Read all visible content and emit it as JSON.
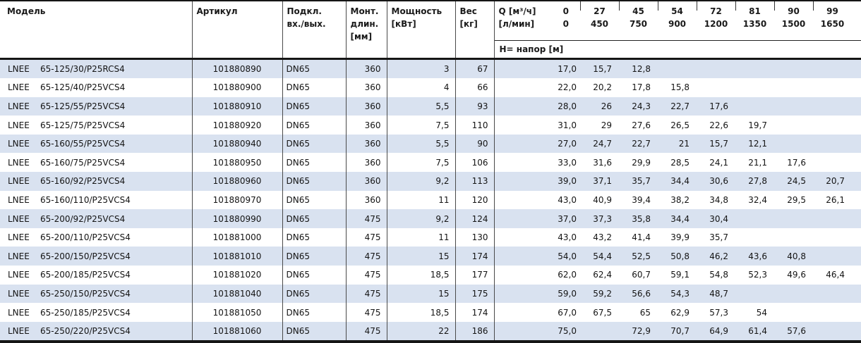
{
  "table": {
    "headers": {
      "model": "Модель",
      "article": "Артикул",
      "connection": [
        "Подкл.",
        "вх./вых."
      ],
      "mount_length": [
        "Монт.",
        "длин.",
        "[мм]"
      ],
      "power": [
        "Мощность",
        "[кВт]"
      ],
      "weight": [
        "Вес",
        "[кг]"
      ],
      "q_row1_label": "Q [м³/ч]",
      "q_row1_value": "0",
      "q_row2_label": "[л/мин]",
      "q_row2_value": "0",
      "flow_columns": [
        {
          "m3h": "27",
          "lmin": "450"
        },
        {
          "m3h": "45",
          "lmin": "750"
        },
        {
          "m3h": "54",
          "lmin": "900"
        },
        {
          "m3h": "72",
          "lmin": "1200"
        },
        {
          "m3h": "81",
          "lmin": "1350"
        },
        {
          "m3h": "90",
          "lmin": "1500"
        },
        {
          "m3h": "99",
          "lmin": "1650"
        }
      ],
      "head_label": "H= напор [м]"
    },
    "rows": [
      {
        "brand": "LNEE",
        "model": "65-125/30/P25RCS4",
        "article": "101880890",
        "connection": "DN65",
        "length": "360",
        "power": "3",
        "weight": "67",
        "head": [
          "17,0",
          "15,7",
          "12,8",
          "",
          "",
          "",
          "",
          ""
        ]
      },
      {
        "brand": "LNEE",
        "model": "65-125/40/P25VCS4",
        "article": "101880900",
        "connection": "DN65",
        "length": "360",
        "power": "4",
        "weight": "66",
        "head": [
          "22,0",
          "20,2",
          "17,8",
          "15,8",
          "",
          "",
          "",
          ""
        ]
      },
      {
        "brand": "LNEE",
        "model": "65-125/55/P25VCS4",
        "article": "101880910",
        "connection": "DN65",
        "length": "360",
        "power": "5,5",
        "weight": "93",
        "head": [
          "28,0",
          "26",
          "24,3",
          "22,7",
          "17,6",
          "",
          "",
          ""
        ]
      },
      {
        "brand": "LNEE",
        "model": "65-125/75/P25VCS4",
        "article": "101880920",
        "connection": "DN65",
        "length": "360",
        "power": "7,5",
        "weight": "110",
        "head": [
          "31,0",
          "29",
          "27,6",
          "26,5",
          "22,6",
          "19,7",
          "",
          ""
        ]
      },
      {
        "brand": "LNEE",
        "model": "65-160/55/P25VCS4",
        "article": "101880940",
        "connection": "DN65",
        "length": "360",
        "power": "5,5",
        "weight": "90",
        "head": [
          "27,0",
          "24,7",
          "22,7",
          "21",
          "15,7",
          "12,1",
          "",
          ""
        ]
      },
      {
        "brand": "LNEE",
        "model": "65-160/75/P25VCS4",
        "article": "101880950",
        "connection": "DN65",
        "length": "360",
        "power": "7,5",
        "weight": "106",
        "head": [
          "33,0",
          "31,6",
          "29,9",
          "28,5",
          "24,1",
          "21,1",
          "17,6",
          ""
        ]
      },
      {
        "brand": "LNEE",
        "model": "65-160/92/P25VCS4",
        "article": "101880960",
        "connection": "DN65",
        "length": "360",
        "power": "9,2",
        "weight": "113",
        "head": [
          "39,0",
          "37,1",
          "35,7",
          "34,4",
          "30,6",
          "27,8",
          "24,5",
          "20,7"
        ]
      },
      {
        "brand": "LNEE",
        "model": "65-160/110/P25VCS4",
        "article": "101880970",
        "connection": "DN65",
        "length": "360",
        "power": "11",
        "weight": "120",
        "head": [
          "43,0",
          "40,9",
          "39,4",
          "38,2",
          "34,8",
          "32,4",
          "29,5",
          "26,1"
        ]
      },
      {
        "brand": "LNEE",
        "model": "65-200/92/P25VCS4",
        "article": "101880990",
        "connection": "DN65",
        "length": "475",
        "power": "9,2",
        "weight": "124",
        "head": [
          "37,0",
          "37,3",
          "35,8",
          "34,4",
          "30,4",
          "",
          "",
          ""
        ]
      },
      {
        "brand": "LNEE",
        "model": "65-200/110/P25VCS4",
        "article": "101881000",
        "connection": "DN65",
        "length": "475",
        "power": "11",
        "weight": "130",
        "head": [
          "43,0",
          "43,2",
          "41,4",
          "39,9",
          "35,7",
          "",
          "",
          ""
        ]
      },
      {
        "brand": "LNEE",
        "model": "65-200/150/P25VCS4",
        "article": "101881010",
        "connection": "DN65",
        "length": "475",
        "power": "15",
        "weight": "174",
        "head": [
          "54,0",
          "54,4",
          "52,5",
          "50,8",
          "46,2",
          "43,6",
          "40,8",
          ""
        ]
      },
      {
        "brand": "LNEE",
        "model": "65-200/185/P25VCS4",
        "article": "101881020",
        "connection": "DN65",
        "length": "475",
        "power": "18,5",
        "weight": "177",
        "head": [
          "62,0",
          "62,4",
          "60,7",
          "59,1",
          "54,8",
          "52,3",
          "49,6",
          "46,4"
        ]
      },
      {
        "brand": "LNEE",
        "model": "65-250/150/P25VCS4",
        "article": "101881040",
        "connection": "DN65",
        "length": "475",
        "power": "15",
        "weight": "175",
        "head": [
          "59,0",
          "59,2",
          "56,6",
          "54,3",
          "48,7",
          "",
          "",
          ""
        ]
      },
      {
        "brand": "LNEE",
        "model": "65-250/185/P25VCS4",
        "article": "101881050",
        "connection": "DN65",
        "length": "475",
        "power": "18,5",
        "weight": "174",
        "head": [
          "67,0",
          "67,5",
          "65",
          "62,9",
          "57,3",
          "54",
          "",
          ""
        ]
      },
      {
        "brand": "LNEE",
        "model": "65-250/220/P25VCS4",
        "article": "101881060",
        "connection": "DN65",
        "length": "475",
        "power": "22",
        "weight": "186",
        "head": [
          "75,0",
          "",
          "72,9",
          "70,7",
          "64,9",
          "61,4",
          "57,6",
          ""
        ]
      }
    ]
  }
}
